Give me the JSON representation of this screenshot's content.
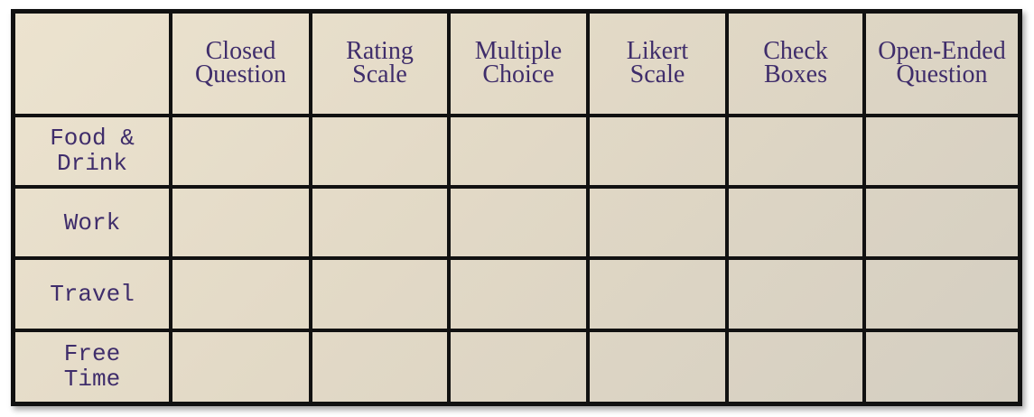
{
  "table": {
    "corner": "",
    "columns": [
      "Closed\nQuestion",
      "Rating\nScale",
      "Multiple\nChoice",
      "Likert\nScale",
      "Check\nBoxes",
      "Open-Ended\nQuestion"
    ],
    "rows": [
      "Food &\nDrink",
      "Work",
      "Travel",
      "Free\nTime"
    ]
  },
  "colors": {
    "text": "#3f2d6b",
    "grid": "#111111",
    "paper": "#e2d9c6"
  }
}
